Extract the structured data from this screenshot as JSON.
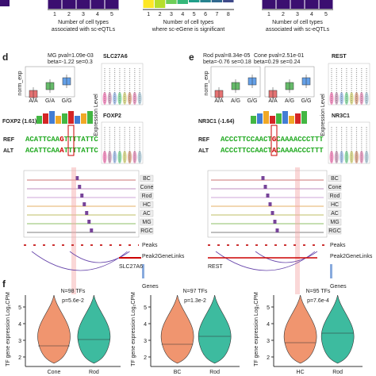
{
  "top": {
    "panels": [
      {
        "xlabel": [
          "Number of cell types",
          "associated with sc-eQTLs"
        ],
        "ticks": [
          "1",
          "2",
          "3",
          "4",
          "5"
        ]
      },
      {
        "xlabel": [
          "Number of cell types",
          "where sc-eGene is significant"
        ],
        "ticks": [
          "1",
          "2",
          "3",
          "4",
          "5",
          "6",
          "7",
          "8"
        ]
      },
      {
        "xlabel": [
          "Number of cell types",
          "associated with sc-eQTLs"
        ],
        "ticks": [
          "1",
          "2",
          "3",
          "4",
          "5"
        ]
      }
    ]
  },
  "panel_d": {
    "letter": "d",
    "box": {
      "stat": [
        "MG pval=1.09e-03",
        "beta=-1.22 se=0.3"
      ],
      "ylabel": "norm_exp",
      "categories": [
        "A/A",
        "G/A",
        "G/G"
      ]
    },
    "genes": [
      "SLC27A6",
      "FOXP2"
    ],
    "expr_label": "Expression Level",
    "motif": "FOXP2 (1.61)",
    "ref": {
      "label": "REF",
      "pre": "ACATTCAA",
      "allele": "G",
      "post": "TTTTATTC"
    },
    "alt": {
      "label": "ALT",
      "pre": "ACATTCAA",
      "allele": "A",
      "post": "TTTTATTC"
    },
    "tracks": [
      "BC",
      "Cone",
      "Rod",
      "HC",
      "AC",
      "MG",
      "RGC"
    ],
    "rows": [
      "Peaks",
      "Peak2GeneLinks",
      "Genes"
    ],
    "gene_name": "SLC27A6"
  },
  "panel_e": {
    "letter": "e",
    "box1": {
      "stat": [
        "Rod pval=8.34e-05",
        "beta=-0.76 se=0.18"
      ],
      "ylabel": "norm_exp",
      "categories": [
        "A/A",
        "A/G",
        "G/G"
      ]
    },
    "box2": {
      "stat": [
        "Cone pval=2.51e-01",
        "beta=0.29 se=0.24"
      ],
      "categories": [
        "A/A",
        "A/G",
        "G/G"
      ]
    },
    "genes": [
      "REST",
      "NR3C1"
    ],
    "expr_label": "Expression Level",
    "motif": "NR3C1 (-1.64)",
    "ref": {
      "label": "REF",
      "pre": "ACCCTTCCAACT",
      "allele": "G",
      "post": "CAAAACCCTTT"
    },
    "alt": {
      "label": "ALT",
      "pre": "ACCCTTCCAACT",
      "allele": "A",
      "post": "CAAAACCCTTT"
    },
    "tracks": [
      "BC",
      "Cone",
      "Rod",
      "HC",
      "AC",
      "MG",
      "RGC"
    ],
    "rows": [
      "Peaks",
      "Peak2GeneLinks",
      "Genes"
    ],
    "gene_name": "REST"
  },
  "panel_f": {
    "letter": "f",
    "ylabel": "TF gene expression Log₂CPM",
    "yticks": [
      "2",
      "3",
      "4",
      "5"
    ],
    "plots": [
      {
        "n": "N=98 TFs",
        "p": "p=5.6e-2",
        "categories": [
          "Cone",
          "Rod"
        ]
      },
      {
        "n": "N=97 TFs",
        "p": "p=1.3e-2",
        "categories": [
          "BC",
          "Rod"
        ]
      },
      {
        "n": "N=95 TFs",
        "p": "p=7.6e-4",
        "categories": [
          "HC",
          "Rod"
        ]
      }
    ]
  }
}
